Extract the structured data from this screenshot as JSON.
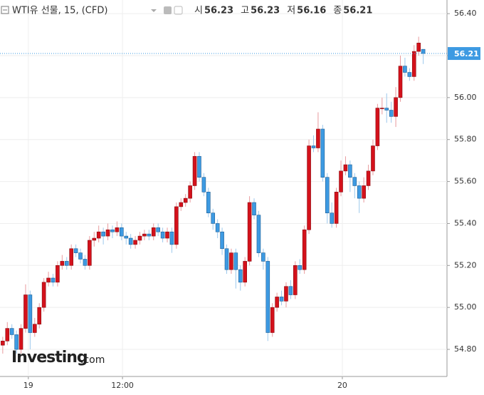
{
  "chart_data": {
    "type": "candlestick",
    "title": "WTI유 선물, 15, (CFD)",
    "ohlc_legend": [
      {
        "label": "시",
        "value": 56.23
      },
      {
        "label": "고",
        "value": 56.23
      },
      {
        "label": "저",
        "value": 56.16
      },
      {
        "label": "종",
        "value": 56.21
      }
    ],
    "last_price": 56.21,
    "watermark": [
      "Investing",
      ".com"
    ],
    "up_color": "#d4111b",
    "down_color": "#3d9ae2",
    "ylim": [
      54.671,
      56.465
    ],
    "yticks": [
      {
        "value": 54.8,
        "label": "54.80"
      },
      {
        "value": 55.0,
        "label": "55.00"
      },
      {
        "value": 55.2,
        "label": "55.20"
      },
      {
        "value": 55.4,
        "label": "55.40"
      },
      {
        "value": 55.6,
        "label": "55.60"
      },
      {
        "value": 55.8,
        "label": "55.80"
      },
      {
        "value": 56.0,
        "label": "56.00"
      },
      {
        "value": 56.2,
        "label": "56.20"
      },
      {
        "value": 56.4,
        "label": "56.40"
      }
    ],
    "xlim": [
      -0.6,
      97.2
    ],
    "xticks": [
      {
        "value": 5.6,
        "label": "19"
      },
      {
        "value": 26.2,
        "label": "12:00"
      },
      {
        "value": 74.3,
        "label": "20"
      }
    ],
    "grid": true,
    "candles": [
      [
        54.82,
        54.86,
        54.78,
        54.84
      ],
      [
        54.84,
        54.93,
        54.82,
        54.9
      ],
      [
        54.9,
        54.92,
        54.85,
        54.87
      ],
      [
        54.87,
        54.89,
        54.78,
        54.8
      ],
      [
        54.8,
        54.92,
        54.78,
        54.9
      ],
      [
        54.9,
        55.11,
        54.88,
        55.06
      ],
      [
        55.06,
        55.08,
        54.8,
        54.88
      ],
      [
        54.88,
        54.95,
        54.86,
        54.92
      ],
      [
        54.92,
        55.02,
        54.9,
        55.0
      ],
      [
        55.0,
        55.14,
        54.98,
        55.12
      ],
      [
        55.12,
        55.17,
        55.1,
        55.14
      ],
      [
        55.14,
        55.16,
        55.1,
        55.12
      ],
      [
        55.12,
        55.22,
        55.1,
        55.2
      ],
      [
        55.2,
        55.25,
        55.18,
        55.22
      ],
      [
        55.22,
        55.24,
        55.18,
        55.2
      ],
      [
        55.2,
        55.3,
        55.18,
        55.28
      ],
      [
        55.28,
        55.3,
        55.24,
        55.26
      ],
      [
        55.26,
        55.28,
        55.21,
        55.23
      ],
      [
        55.23,
        55.25,
        55.18,
        55.2
      ],
      [
        55.2,
        55.34,
        55.18,
        55.32
      ],
      [
        55.32,
        55.36,
        55.29,
        55.33
      ],
      [
        55.33,
        55.39,
        55.31,
        55.36
      ],
      [
        55.36,
        55.38,
        55.3,
        55.34
      ],
      [
        55.34,
        55.4,
        55.32,
        55.37
      ],
      [
        55.37,
        55.39,
        55.33,
        55.36
      ],
      [
        55.36,
        55.41,
        55.34,
        55.38
      ],
      [
        55.38,
        55.4,
        55.32,
        55.34
      ],
      [
        55.34,
        55.36,
        55.3,
        55.33
      ],
      [
        55.33,
        55.35,
        55.28,
        55.3
      ],
      [
        55.3,
        55.34,
        55.28,
        55.32
      ],
      [
        55.32,
        55.36,
        55.3,
        55.34
      ],
      [
        55.34,
        55.37,
        55.32,
        55.35
      ],
      [
        55.35,
        55.37,
        55.32,
        55.34
      ],
      [
        55.34,
        55.4,
        55.32,
        55.38
      ],
      [
        55.38,
        55.4,
        55.34,
        55.36
      ],
      [
        55.36,
        55.38,
        55.31,
        55.33
      ],
      [
        55.33,
        55.38,
        55.31,
        55.36
      ],
      [
        55.36,
        55.38,
        55.26,
        55.3
      ],
      [
        55.3,
        55.5,
        55.28,
        55.48
      ],
      [
        55.48,
        55.52,
        55.46,
        55.5
      ],
      [
        55.5,
        55.54,
        55.48,
        55.52
      ],
      [
        55.52,
        55.6,
        55.5,
        55.58
      ],
      [
        55.58,
        55.74,
        55.56,
        55.72
      ],
      [
        55.72,
        55.74,
        55.6,
        55.62
      ],
      [
        55.62,
        55.64,
        55.53,
        55.55
      ],
      [
        55.55,
        55.57,
        55.43,
        55.45
      ],
      [
        55.45,
        55.47,
        55.37,
        55.4
      ],
      [
        55.4,
        55.42,
        55.33,
        55.36
      ],
      [
        55.36,
        55.38,
        55.25,
        55.28
      ],
      [
        55.28,
        55.3,
        55.16,
        55.18
      ],
      [
        55.18,
        55.28,
        55.16,
        55.26
      ],
      [
        55.26,
        55.28,
        55.09,
        55.18
      ],
      [
        55.18,
        55.2,
        55.08,
        55.12
      ],
      [
        55.12,
        55.24,
        55.1,
        55.22
      ],
      [
        55.22,
        55.53,
        55.2,
        55.5
      ],
      [
        55.5,
        55.52,
        55.42,
        55.44
      ],
      [
        55.44,
        55.46,
        55.24,
        55.26
      ],
      [
        55.26,
        55.28,
        55.18,
        55.22
      ],
      [
        55.22,
        55.24,
        54.84,
        54.88
      ],
      [
        54.88,
        55.02,
        54.86,
        55.0
      ],
      [
        55.0,
        55.07,
        54.98,
        55.05
      ],
      [
        55.05,
        55.08,
        55.01,
        55.03
      ],
      [
        55.03,
        55.12,
        55.0,
        55.1
      ],
      [
        55.1,
        55.13,
        55.04,
        55.06
      ],
      [
        55.06,
        55.22,
        55.04,
        55.2
      ],
      [
        55.2,
        55.23,
        55.16,
        55.18
      ],
      [
        55.18,
        55.39,
        55.16,
        55.37
      ],
      [
        55.37,
        55.8,
        55.35,
        55.77
      ],
      [
        55.77,
        55.82,
        55.74,
        55.76
      ],
      [
        55.76,
        55.93,
        55.74,
        55.85
      ],
      [
        55.85,
        55.87,
        55.6,
        55.62
      ],
      [
        55.62,
        55.64,
        55.4,
        55.45
      ],
      [
        55.45,
        55.5,
        55.38,
        55.4
      ],
      [
        55.4,
        55.57,
        55.38,
        55.55
      ],
      [
        55.55,
        55.7,
        55.53,
        55.65
      ],
      [
        55.65,
        55.72,
        55.63,
        55.68
      ],
      [
        55.68,
        55.7,
        55.55,
        55.62
      ],
      [
        55.62,
        55.64,
        55.52,
        55.58
      ],
      [
        55.58,
        55.6,
        55.45,
        55.52
      ],
      [
        55.52,
        55.62,
        55.5,
        55.58
      ],
      [
        55.58,
        55.68,
        55.56,
        55.65
      ],
      [
        55.65,
        55.8,
        55.63,
        55.77
      ],
      [
        55.77,
        55.97,
        55.75,
        55.95
      ],
      [
        55.95,
        56.0,
        55.92,
        55.95
      ],
      [
        55.95,
        56.02,
        55.88,
        55.94
      ],
      [
        55.94,
        55.98,
        55.88,
        55.91
      ],
      [
        55.91,
        56.05,
        55.86,
        56.0
      ],
      [
        56.0,
        56.2,
        55.98,
        56.15
      ],
      [
        56.15,
        56.19,
        56.1,
        56.12
      ],
      [
        56.12,
        56.14,
        56.08,
        56.1
      ],
      [
        56.1,
        56.25,
        56.08,
        56.22
      ],
      [
        56.22,
        56.29,
        56.2,
        56.26
      ],
      [
        56.23,
        56.23,
        56.16,
        56.21
      ]
    ]
  }
}
